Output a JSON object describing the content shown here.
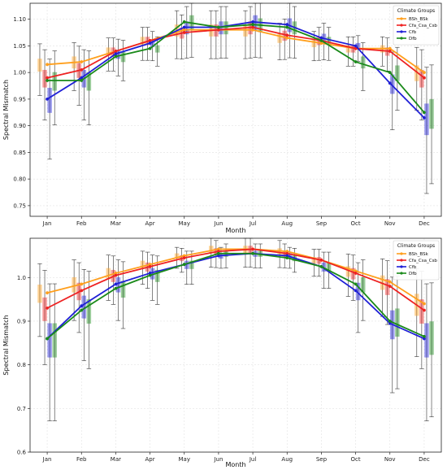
{
  "chart_data": [
    {
      "type": "line",
      "xlabel": "Month",
      "ylabel": "Spectral Mismatch",
      "categories": [
        "Jan",
        "Feb",
        "Mar",
        "Apr",
        "May",
        "Jun",
        "Jul",
        "Aug",
        "Sep",
        "Oct",
        "Nov",
        "Dec"
      ],
      "ylim": [
        0.73,
        1.13
      ],
      "yticks": [
        0.75,
        0.8,
        0.85,
        0.9,
        0.95,
        1.0,
        1.05,
        1.1
      ],
      "grid": true,
      "legend": {
        "title": "Climate Groups",
        "placement": "top-right"
      },
      "series": [
        {
          "name": "BSh_BSk",
          "color": "#ff9f1c",
          "values": [
            1.015,
            1.02,
            1.04,
            1.06,
            1.08,
            1.08,
            1.08,
            1.065,
            1.055,
            1.045,
            1.045,
            1.0
          ]
        },
        {
          "name": "Cfa_Csa_Csb",
          "color": "#ee2222",
          "values": [
            0.99,
            1.005,
            1.04,
            1.06,
            1.075,
            1.08,
            1.085,
            1.07,
            1.06,
            1.045,
            1.04,
            0.99
          ]
        },
        {
          "name": "Cfb",
          "color": "#1f1fd6",
          "values": [
            0.95,
            0.99,
            1.035,
            1.055,
            1.085,
            1.085,
            1.095,
            1.09,
            1.065,
            1.05,
            0.98,
            0.915
          ]
        },
        {
          "name": "Dfb",
          "color": "#1a8a1a",
          "values": [
            0.985,
            0.985,
            1.03,
            1.045,
            1.095,
            1.085,
            1.09,
            1.085,
            1.06,
            1.02,
            1.0,
            0.925
          ]
        }
      ]
    },
    {
      "type": "line",
      "xlabel": "Month",
      "ylabel": "Spectral Mismatch",
      "categories": [
        "Jan",
        "Feb",
        "Mar",
        "Apr",
        "May",
        "Jun",
        "Jul",
        "Aug",
        "Sep",
        "Oct",
        "Nov",
        "Dec"
      ],
      "ylim": [
        0.6,
        1.09
      ],
      "yticks": [
        0.6,
        0.7,
        0.8,
        0.9,
        1.0
      ],
      "grid": true,
      "legend": {
        "title": "Climate Groups",
        "placement": "top-right"
      },
      "series": [
        {
          "name": "BSh_BSk",
          "color": "#ff9f1c",
          "values": [
            0.965,
            0.985,
            1.01,
            1.03,
            1.05,
            1.065,
            1.065,
            1.06,
            1.04,
            1.015,
            0.99,
            0.94
          ]
        },
        {
          "name": "Cfa_Csa_Csb",
          "color": "#ee2222",
          "values": [
            0.93,
            0.97,
            1.005,
            1.025,
            1.045,
            1.06,
            1.065,
            1.055,
            1.04,
            1.01,
            0.98,
            0.925
          ]
        },
        {
          "name": "Cfb",
          "color": "#1f1fd6",
          "values": [
            0.86,
            0.935,
            0.985,
            1.01,
            1.03,
            1.05,
            1.055,
            1.05,
            1.025,
            0.97,
            0.895,
            0.86
          ]
        },
        {
          "name": "Dfb",
          "color": "#1a8a1a",
          "values": [
            0.86,
            0.925,
            0.975,
            1.005,
            1.03,
            1.055,
            1.055,
            1.045,
            1.025,
            0.985,
            0.9,
            0.865
          ]
        }
      ]
    }
  ]
}
